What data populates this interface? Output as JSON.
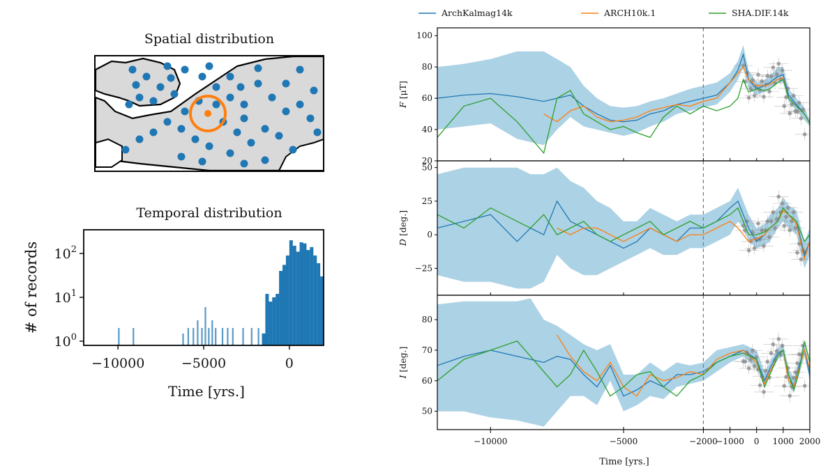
{
  "left": {
    "map": {
      "title": "Spatial distribution",
      "colors": {
        "land": "#d9d9d9",
        "coast": "#000000",
        "points": "#1f77b4",
        "marker": "#ff7f0e"
      }
    },
    "histogram": {
      "title": "Temporal distribution",
      "ylabel": "# of records",
      "xlabel": "Time [yrs.]",
      "xticks": [
        "−10000",
        "−5000",
        "0"
      ],
      "ytick_base": "10",
      "ytick_exps": [
        "0",
        "1",
        "2"
      ]
    }
  },
  "right": {
    "legend": [
      "ArchKalmag14k",
      "ARCH10k.1",
      "SHA.DIF.14k"
    ],
    "xlabel": "Time [yrs.]",
    "xticks": [
      "−10000",
      "−5000",
      "−2000",
      "−1000",
      "0",
      "1000",
      "2000"
    ],
    "panels": [
      {
        "key": "F",
        "ylabel_var": "F",
        "ylabel_unit": "[μT]",
        "yticks": [
          "100",
          "80",
          "60",
          "40",
          "20"
        ]
      },
      {
        "key": "D",
        "ylabel_var": "D",
        "ylabel_unit": "[deg.]",
        "yticks": [
          "50",
          "25",
          "0",
          "−25"
        ]
      },
      {
        "key": "I",
        "ylabel_var": "I",
        "ylabel_unit": "[deg.]",
        "yticks": [
          "80",
          "70",
          "60",
          "50"
        ]
      }
    ],
    "colors": {
      "ArchKalmag14k": "#1f77b4",
      "ARCH10k.1": "#ff7f0e",
      "SHA.DIF.14k": "#2ca02c",
      "band": "#9ecae1",
      "data": "#8c8c8c"
    }
  },
  "chart_data": [
    {
      "type": "bar",
      "title": "Temporal distribution",
      "xlabel": "Time [yrs.]",
      "ylabel": "# of records",
      "yscale": "log",
      "xlim": [
        -12000,
        2000
      ],
      "ylim": [
        1,
        300
      ],
      "x": [
        -9950,
        -9100,
        -6200,
        -5900,
        -5600,
        -5350,
        -5100,
        -4900,
        -4700,
        -4500,
        -4300,
        -3900,
        -3600,
        -3300,
        -2700,
        -2200,
        -1800,
        -1500,
        -1300,
        -1100,
        -900,
        -700,
        -500,
        -300,
        -100,
        100,
        300,
        500,
        700,
        900,
        1100,
        1300,
        1500,
        1700,
        1900
      ],
      "values": [
        2,
        2,
        1.5,
        2,
        2,
        3,
        2,
        6,
        2,
        3,
        2,
        2,
        2,
        2,
        2,
        2,
        2,
        1.5,
        12,
        8,
        10,
        12,
        40,
        55,
        90,
        200,
        150,
        110,
        180,
        170,
        120,
        140,
        90,
        60,
        30
      ]
    },
    {
      "type": "line",
      "title": "F [μT]",
      "xlabel": "Time [yrs.]",
      "xlim": [
        -12000,
        2000
      ],
      "ylim": [
        20,
        105
      ],
      "x": [
        -12000,
        -11000,
        -10000,
        -9000,
        -8000,
        -7500,
        -7000,
        -6500,
        -6000,
        -5500,
        -5000,
        -4500,
        -4000,
        -3500,
        -3000,
        -2500,
        -2000,
        -1500,
        -1000,
        -700,
        -500,
        -300,
        0,
        300,
        500,
        800,
        1000,
        1200,
        1500,
        1800,
        2000
      ],
      "series": [
        {
          "name": "ArchKalmag14k",
          "values": [
            60,
            62,
            63,
            61,
            58,
            60,
            62,
            55,
            50,
            46,
            45,
            46,
            50,
            52,
            56,
            58,
            60,
            62,
            70,
            78,
            88,
            72,
            66,
            68,
            70,
            74,
            75,
            62,
            56,
            50,
            44
          ]
        },
        {
          "name": "ARCH10k.1",
          "values": [
            null,
            null,
            null,
            null,
            50,
            45,
            52,
            55,
            48,
            45,
            46,
            48,
            52,
            54,
            56,
            55,
            58,
            60,
            70,
            76,
            80,
            72,
            68,
            68,
            69,
            72,
            73,
            60,
            55,
            50,
            44
          ]
        },
        {
          "name": "SHA.DIF.14k",
          "values": [
            35,
            55,
            60,
            45,
            25,
            60,
            65,
            50,
            45,
            40,
            42,
            38,
            35,
            48,
            55,
            50,
            55,
            52,
            55,
            60,
            72,
            64,
            66,
            65,
            66,
            70,
            72,
            60,
            55,
            50,
            44
          ]
        }
      ],
      "uncertainty_band": {
        "series": "ArchKalmag14k",
        "lower": [
          40,
          42,
          44,
          34,
          30,
          40,
          48,
          42,
          40,
          38,
          36,
          38,
          42,
          45,
          50,
          52,
          54,
          56,
          64,
          72,
          80,
          66,
          62,
          64,
          66,
          70,
          70,
          58,
          52,
          46,
          42
        ],
        "upper": [
          80,
          82,
          85,
          90,
          90,
          85,
          80,
          68,
          60,
          55,
          54,
          55,
          58,
          60,
          63,
          66,
          68,
          70,
          76,
          84,
          94,
          78,
          70,
          72,
          74,
          80,
          80,
          66,
          60,
          54,
          46
        ]
      },
      "reference_line_x": -2000
    },
    {
      "type": "line",
      "title": "D [deg.]",
      "xlabel": "Time [yrs.]",
      "xlim": [
        -12000,
        2000
      ],
      "ylim": [
        -45,
        55
      ],
      "x": [
        -12000,
        -11000,
        -10000,
        -9000,
        -8500,
        -8000,
        -7500,
        -7000,
        -6500,
        -6000,
        -5500,
        -5000,
        -4500,
        -4000,
        -3500,
        -3000,
        -2500,
        -2000,
        -1500,
        -1000,
        -700,
        -500,
        -300,
        0,
        300,
        500,
        800,
        1000,
        1200,
        1500,
        1800,
        2000
      ],
      "series": [
        {
          "name": "ArchKalmag14k",
          "values": [
            5,
            10,
            15,
            -5,
            5,
            0,
            25,
            10,
            5,
            0,
            -5,
            -10,
            -5,
            5,
            0,
            -5,
            5,
            5,
            10,
            20,
            25,
            15,
            5,
            -5,
            0,
            5,
            10,
            20,
            15,
            10,
            -15,
            -5
          ]
        },
        {
          "name": "ARCH10k.1",
          "values": [
            null,
            null,
            null,
            null,
            null,
            null,
            5,
            0,
            5,
            5,
            0,
            -5,
            0,
            5,
            0,
            -5,
            0,
            0,
            5,
            10,
            5,
            0,
            -5,
            -3,
            0,
            5,
            10,
            18,
            15,
            8,
            -18,
            -5
          ]
        },
        {
          "name": "SHA.DIF.14k",
          "values": [
            15,
            5,
            20,
            10,
            5,
            15,
            0,
            5,
            10,
            0,
            -5,
            0,
            5,
            10,
            0,
            5,
            10,
            5,
            10,
            15,
            20,
            10,
            0,
            0,
            2,
            5,
            10,
            20,
            15,
            10,
            -5,
            0
          ]
        }
      ],
      "uncertainty_band": {
        "series": "ArchKalmag14k",
        "lower": [
          -30,
          -35,
          -35,
          -40,
          -40,
          -35,
          -15,
          -25,
          -30,
          -30,
          -25,
          -20,
          -15,
          -10,
          -15,
          -15,
          -10,
          -10,
          -5,
          0,
          10,
          5,
          -5,
          -10,
          -8,
          -5,
          5,
          10,
          5,
          0,
          -25,
          -15
        ],
        "upper": [
          45,
          50,
          50,
          50,
          45,
          45,
          50,
          40,
          35,
          25,
          20,
          10,
          10,
          20,
          15,
          10,
          15,
          15,
          20,
          25,
          35,
          25,
          15,
          5,
          8,
          15,
          20,
          28,
          22,
          18,
          -5,
          5
        ]
      },
      "reference_line_x": -2000
    },
    {
      "type": "line",
      "title": "I [deg.]",
      "xlabel": "Time [yrs.]",
      "xlim": [
        -12000,
        2000
      ],
      "ylim": [
        44,
        88
      ],
      "x": [
        -12000,
        -11000,
        -10000,
        -9000,
        -8500,
        -8000,
        -7500,
        -7000,
        -6500,
        -6000,
        -5500,
        -5000,
        -4500,
        -4000,
        -3500,
        -3000,
        -2500,
        -2000,
        -1500,
        -1000,
        -500,
        0,
        300,
        500,
        800,
        1000,
        1200,
        1400,
        1600,
        1800,
        2000
      ],
      "series": [
        {
          "name": "ArchKalmag14k",
          "values": [
            65,
            68,
            70,
            68,
            67,
            66,
            68,
            67,
            62,
            58,
            65,
            55,
            57,
            60,
            58,
            62,
            62,
            63,
            66,
            68,
            70,
            67,
            60,
            64,
            69,
            70,
            62,
            58,
            65,
            70,
            62
          ]
        },
        {
          "name": "ARCH10k.1",
          "values": [
            null,
            null,
            null,
            null,
            null,
            null,
            75,
            68,
            63,
            60,
            66,
            58,
            55,
            62,
            60,
            61,
            63,
            62,
            67,
            69,
            70,
            66,
            59,
            63,
            68,
            70,
            60,
            58,
            64,
            70,
            64
          ]
        },
        {
          "name": "SHA.DIF.14k",
          "values": [
            60,
            67,
            70,
            73,
            68,
            63,
            58,
            62,
            70,
            63,
            55,
            58,
            62,
            63,
            58,
            55,
            60,
            62,
            66,
            68,
            69,
            67,
            58,
            62,
            68,
            70,
            62,
            57,
            63,
            73,
            66
          ]
        }
      ],
      "uncertainty_band": {
        "series": "ArchKalmag14k",
        "lower": [
          50,
          50,
          48,
          47,
          46,
          45,
          50,
          55,
          55,
          52,
          60,
          50,
          52,
          55,
          54,
          58,
          59,
          60,
          63,
          66,
          68,
          64,
          58,
          62,
          67,
          68,
          59,
          56,
          62,
          68,
          60
        ],
        "upper": [
          85,
          86,
          86,
          86,
          87,
          80,
          78,
          75,
          72,
          70,
          72,
          62,
          62,
          66,
          63,
          66,
          65,
          66,
          70,
          71,
          72,
          70,
          63,
          66,
          71,
          72,
          64,
          61,
          67,
          73,
          64
        ]
      },
      "reference_line_x": -2000
    }
  ]
}
